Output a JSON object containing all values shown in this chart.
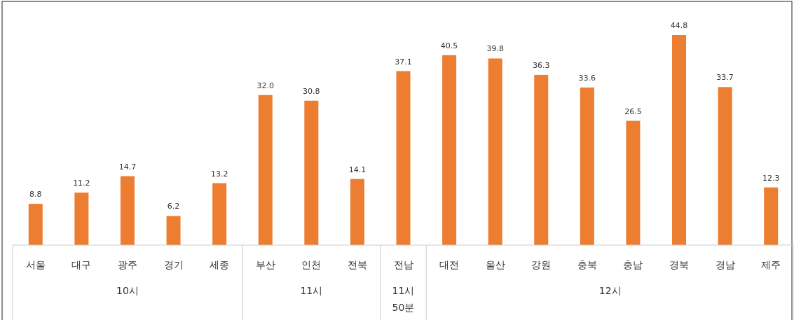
{
  "chart_data": {
    "type": "bar",
    "categories": [
      "서울",
      "대구",
      "광주",
      "경기",
      "세종",
      "부산",
      "인천",
      "전북",
      "전남",
      "대전",
      "울산",
      "강원",
      "충북",
      "충남",
      "경북",
      "경남",
      "제주"
    ],
    "values": [
      8.8,
      11.2,
      14.7,
      6.2,
      13.2,
      32.0,
      30.8,
      14.1,
      37.1,
      40.5,
      39.8,
      36.3,
      33.6,
      26.5,
      44.8,
      33.7,
      12.3
    ],
    "value_labels": [
      "8.8",
      "11.2",
      "14.7",
      "6.2",
      "13.2",
      "32.0",
      "30.8",
      "14.1",
      "37.1",
      "40.5",
      "39.8",
      "36.3",
      "33.6",
      "26.5",
      "44.8",
      "33.7",
      "12.3"
    ],
    "color": "#ed7d31",
    "annotations": [
      "10시",
      "11시",
      "11시\n50분",
      "12시"
    ]
  }
}
